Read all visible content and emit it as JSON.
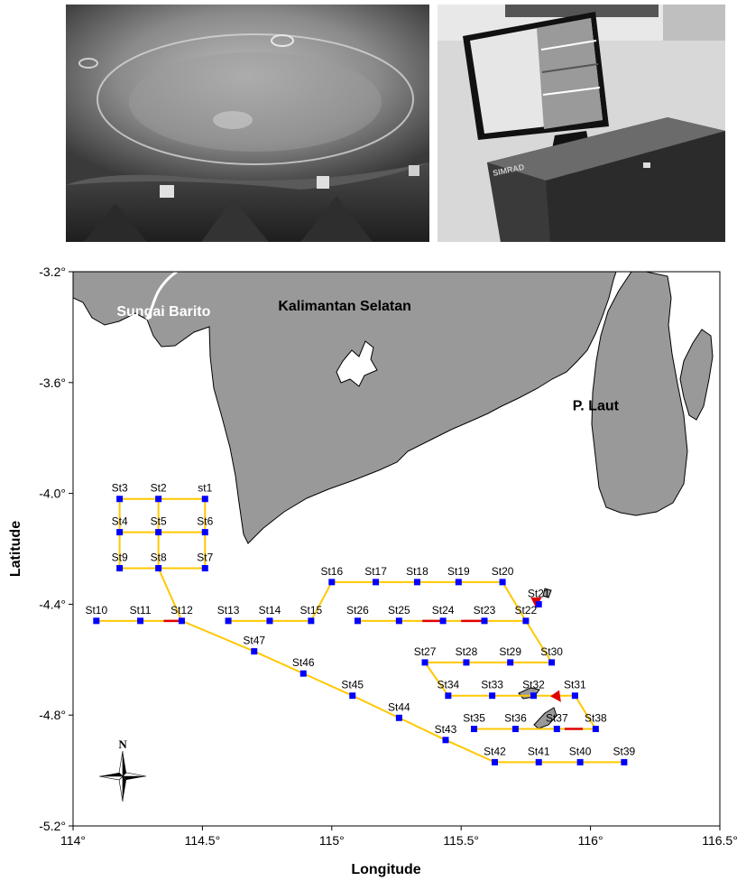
{
  "photos": [
    {
      "name": "underwater-hull-photo"
    },
    {
      "name": "simrad-echosounder-photo",
      "brand_text": "SIMRAD"
    }
  ],
  "map": {
    "xlabel": "Longitude",
    "ylabel": "Latitude",
    "xlim": [
      114,
      116.5
    ],
    "ylim": [
      -5.2,
      -3.2
    ],
    "x_ticks": [
      {
        "value": 114,
        "label": "114°"
      },
      {
        "value": 114.5,
        "label": "114.5°"
      },
      {
        "value": 115,
        "label": "115°"
      },
      {
        "value": 115.5,
        "label": "115.5°"
      },
      {
        "value": 116,
        "label": "116°"
      },
      {
        "value": 116.5,
        "label": "116.5°"
      }
    ],
    "y_ticks": [
      {
        "value": -3.2,
        "label": "-3.2°"
      },
      {
        "value": -3.6,
        "label": "-3.6°"
      },
      {
        "value": -4.0,
        "label": "-4.0°"
      },
      {
        "value": -4.4,
        "label": "-4.4°"
      },
      {
        "value": -4.8,
        "label": "-4.8°"
      },
      {
        "value": -5.2,
        "label": "-5.2°"
      }
    ],
    "place_names": [
      {
        "name": "Sungai Barito",
        "lon": 114.35,
        "lat": -3.36,
        "color": "#ffffff"
      },
      {
        "name": "Kalimantan Selatan",
        "lon": 115.05,
        "lat": -3.34,
        "color": "#000000"
      },
      {
        "name": "P. Laut",
        "lon": 116.02,
        "lat": -3.7,
        "color": "#000000"
      }
    ],
    "compass_label": "N",
    "colors": {
      "sea": "#ffffff",
      "land": "#999999",
      "coast": "#000000",
      "track": "#ffc800",
      "station": "#0000ff",
      "highlight": "#e00000"
    }
  },
  "chart_data": {
    "type": "scatter",
    "title": "",
    "xlabel": "Longitude",
    "ylabel": "Latitude",
    "xlim": [
      114,
      116.5
    ],
    "ylim": [
      -5.2,
      -3.2
    ],
    "stations": [
      {
        "id": "st1",
        "lon": 114.51,
        "lat": -4.02
      },
      {
        "id": "St2",
        "lon": 114.33,
        "lat": -4.02
      },
      {
        "id": "St3",
        "lon": 114.18,
        "lat": -4.02
      },
      {
        "id": "St4",
        "lon": 114.18,
        "lat": -4.14
      },
      {
        "id": "St5",
        "lon": 114.33,
        "lat": -4.14
      },
      {
        "id": "St6",
        "lon": 114.51,
        "lat": -4.14
      },
      {
        "id": "St7",
        "lon": 114.51,
        "lat": -4.27
      },
      {
        "id": "St8",
        "lon": 114.33,
        "lat": -4.27
      },
      {
        "id": "St9",
        "lon": 114.18,
        "lat": -4.27
      },
      {
        "id": "St10",
        "lon": 114.09,
        "lat": -4.46
      },
      {
        "id": "St11",
        "lon": 114.26,
        "lat": -4.46
      },
      {
        "id": "St12",
        "lon": 114.42,
        "lat": -4.46
      },
      {
        "id": "St13",
        "lon": 114.6,
        "lat": -4.46
      },
      {
        "id": "St14",
        "lon": 114.76,
        "lat": -4.46
      },
      {
        "id": "St15",
        "lon": 114.92,
        "lat": -4.46
      },
      {
        "id": "St16",
        "lon": 115.0,
        "lat": -4.32
      },
      {
        "id": "St17",
        "lon": 115.17,
        "lat": -4.32
      },
      {
        "id": "St18",
        "lon": 115.33,
        "lat": -4.32
      },
      {
        "id": "St19",
        "lon": 115.49,
        "lat": -4.32
      },
      {
        "id": "St20",
        "lon": 115.66,
        "lat": -4.32
      },
      {
        "id": "St21",
        "lon": 115.8,
        "lat": -4.4
      },
      {
        "id": "St22",
        "lon": 115.75,
        "lat": -4.46
      },
      {
        "id": "St23",
        "lon": 115.59,
        "lat": -4.46
      },
      {
        "id": "St24",
        "lon": 115.43,
        "lat": -4.46
      },
      {
        "id": "St25",
        "lon": 115.26,
        "lat": -4.46
      },
      {
        "id": "St26",
        "lon": 115.1,
        "lat": -4.46
      },
      {
        "id": "St27",
        "lon": 115.36,
        "lat": -4.61
      },
      {
        "id": "St28",
        "lon": 115.52,
        "lat": -4.61
      },
      {
        "id": "St29",
        "lon": 115.69,
        "lat": -4.61
      },
      {
        "id": "St30",
        "lon": 115.85,
        "lat": -4.61
      },
      {
        "id": "St31",
        "lon": 115.94,
        "lat": -4.73
      },
      {
        "id": "St32",
        "lon": 115.78,
        "lat": -4.73
      },
      {
        "id": "St33",
        "lon": 115.62,
        "lat": -4.73
      },
      {
        "id": "St34",
        "lon": 115.45,
        "lat": -4.73
      },
      {
        "id": "St35",
        "lon": 115.55,
        "lat": -4.85
      },
      {
        "id": "St36",
        "lon": 115.71,
        "lat": -4.85
      },
      {
        "id": "St37",
        "lon": 115.87,
        "lat": -4.85
      },
      {
        "id": "St38",
        "lon": 116.02,
        "lat": -4.85
      },
      {
        "id": "St39",
        "lon": 116.13,
        "lat": -4.97
      },
      {
        "id": "St40",
        "lon": 115.96,
        "lat": -4.97
      },
      {
        "id": "St41",
        "lon": 115.8,
        "lat": -4.97
      },
      {
        "id": "St42",
        "lon": 115.63,
        "lat": -4.97
      },
      {
        "id": "St43",
        "lon": 115.44,
        "lat": -4.89
      },
      {
        "id": "St44",
        "lon": 115.26,
        "lat": -4.81
      },
      {
        "id": "St45",
        "lon": 115.08,
        "lat": -4.73
      },
      {
        "id": "St46",
        "lon": 114.89,
        "lat": -4.65
      },
      {
        "id": "St47",
        "lon": 114.7,
        "lat": -4.57
      }
    ],
    "tracks": [
      {
        "stations": [
          "St3",
          "St2",
          "st1"
        ],
        "highlights": []
      },
      {
        "stations": [
          "St4",
          "St5",
          "St6"
        ],
        "highlights": []
      },
      {
        "stations": [
          "St9",
          "St8",
          "St7"
        ],
        "highlights": []
      },
      {
        "stations": [
          "St3",
          "St4",
          "St9"
        ],
        "highlights": []
      },
      {
        "stations": [
          "St2",
          "St5",
          "St8"
        ],
        "highlights": []
      },
      {
        "stations": [
          "st1",
          "St6",
          "St7"
        ],
        "highlights": []
      },
      {
        "stations": [
          "St8",
          "St12"
        ],
        "highlights": []
      },
      {
        "stations": [
          "St10",
          "St11",
          "St12"
        ],
        "highlights": [
          [
            114.35,
            114.42
          ]
        ]
      },
      {
        "stations": [
          "St13",
          "St14",
          "St15",
          "St16",
          "St17",
          "St18",
          "St19",
          "St20",
          "St22"
        ],
        "highlights": []
      },
      {
        "stations": [
          "St26",
          "St25",
          "St24",
          "St23",
          "St22",
          "St30",
          "St29",
          "St28",
          "St27",
          "St34",
          "St33",
          "St32",
          "St31",
          "St38",
          "St37",
          "St36",
          "St35"
        ],
        "highlights": [
          [
            115.35,
            115.43
          ],
          [
            115.5,
            115.58
          ],
          [
            115.9,
            115.97
          ]
        ]
      },
      {
        "stations": [
          "St12",
          "St47",
          "St46",
          "St45",
          "St44",
          "St43",
          "St42",
          "St41",
          "St40",
          "St39"
        ],
        "highlights": []
      }
    ],
    "arrows": [
      {
        "lon": 115.79,
        "lat": -4.405,
        "direction": "down"
      },
      {
        "lon": 115.88,
        "lat": -4.745,
        "direction": "down-right"
      }
    ]
  }
}
